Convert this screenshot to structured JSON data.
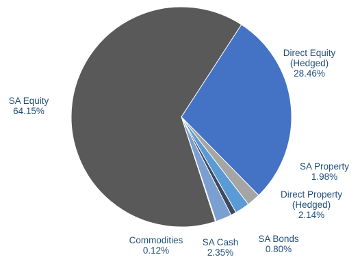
{
  "chart_data": {
    "type": "pie",
    "title": "",
    "start_angle_deg": 33,
    "direction": "clockwise",
    "slices": [
      {
        "label": "Direct Equity (Hedged)",
        "label_lines": [
          "Direct Equity",
          "(Hedged)"
        ],
        "value": 28.46,
        "value_text": "28.46%",
        "color": "#4472C4"
      },
      {
        "label": "SA Property",
        "label_lines": [
          "SA Property"
        ],
        "value": 1.98,
        "value_text": "1.98%",
        "color": "#A5A5A5"
      },
      {
        "label": "Direct Property (Hedged)",
        "label_lines": [
          "Direct Property",
          "(Hedged)"
        ],
        "value": 2.14,
        "value_text": "2.14%",
        "color": "#5B9BD5"
      },
      {
        "label": "SA Bonds",
        "label_lines": [
          "SA Bonds"
        ],
        "value": 0.8,
        "value_text": "0.80%",
        "color": "#3B4A5E"
      },
      {
        "label": "SA Cash",
        "label_lines": [
          "SA Cash"
        ],
        "value": 2.35,
        "value_text": "2.35%",
        "color": "#7B9FD0"
      },
      {
        "label": "Commodities",
        "label_lines": [
          "Commodities"
        ],
        "value": 0.12,
        "value_text": "0.12%",
        "color": "#E8C84A"
      },
      {
        "label": "SA Equity",
        "label_lines": [
          "SA Equity"
        ],
        "value": 64.15,
        "value_text": "64.15%",
        "color": "#595959"
      }
    ],
    "label_color": "#1F4E79",
    "legend": "none"
  }
}
